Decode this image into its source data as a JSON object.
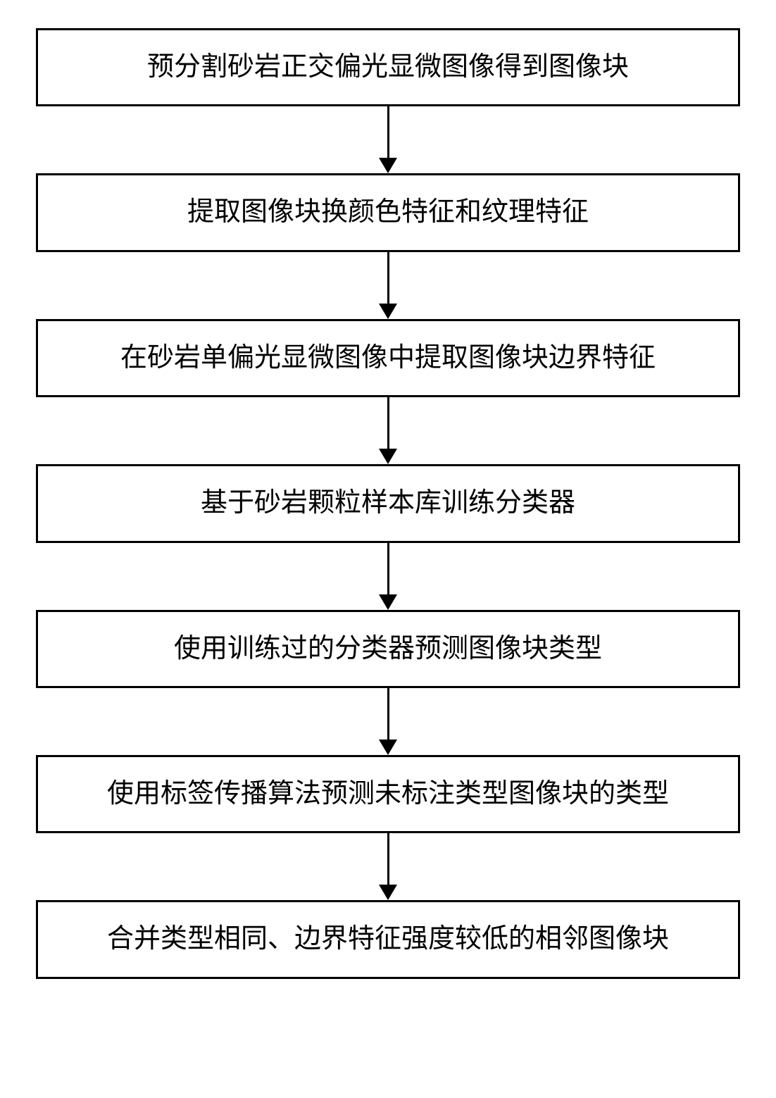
{
  "flowchart": {
    "steps": [
      {
        "label": "预分割砂岩正交偏光显微图像得到图像块"
      },
      {
        "label": "提取图像块换颜色特征和纹理特征"
      },
      {
        "label": "在砂岩单偏光显微图像中提取图像块边界特征"
      },
      {
        "label": "基于砂岩颗粒样本库训练分类器"
      },
      {
        "label": "使用训练过的分类器预测图像块类型"
      },
      {
        "label": "使用标签传播算法预测未标注类型图像块的类型"
      },
      {
        "label": "合并类型相同、边界特征强度较低的相邻图像块"
      }
    ],
    "style": {
      "box_border_color": "#000000",
      "box_border_width": 3,
      "box_background_color": "#ffffff",
      "text_color": "#000000",
      "text_fontsize": 38,
      "arrow_color": "#000000",
      "arrow_line_width": 3,
      "arrow_head_width": 26,
      "arrow_head_height": 22,
      "arrow_gap_height": 95,
      "page_background_color": "#ffffff"
    }
  }
}
